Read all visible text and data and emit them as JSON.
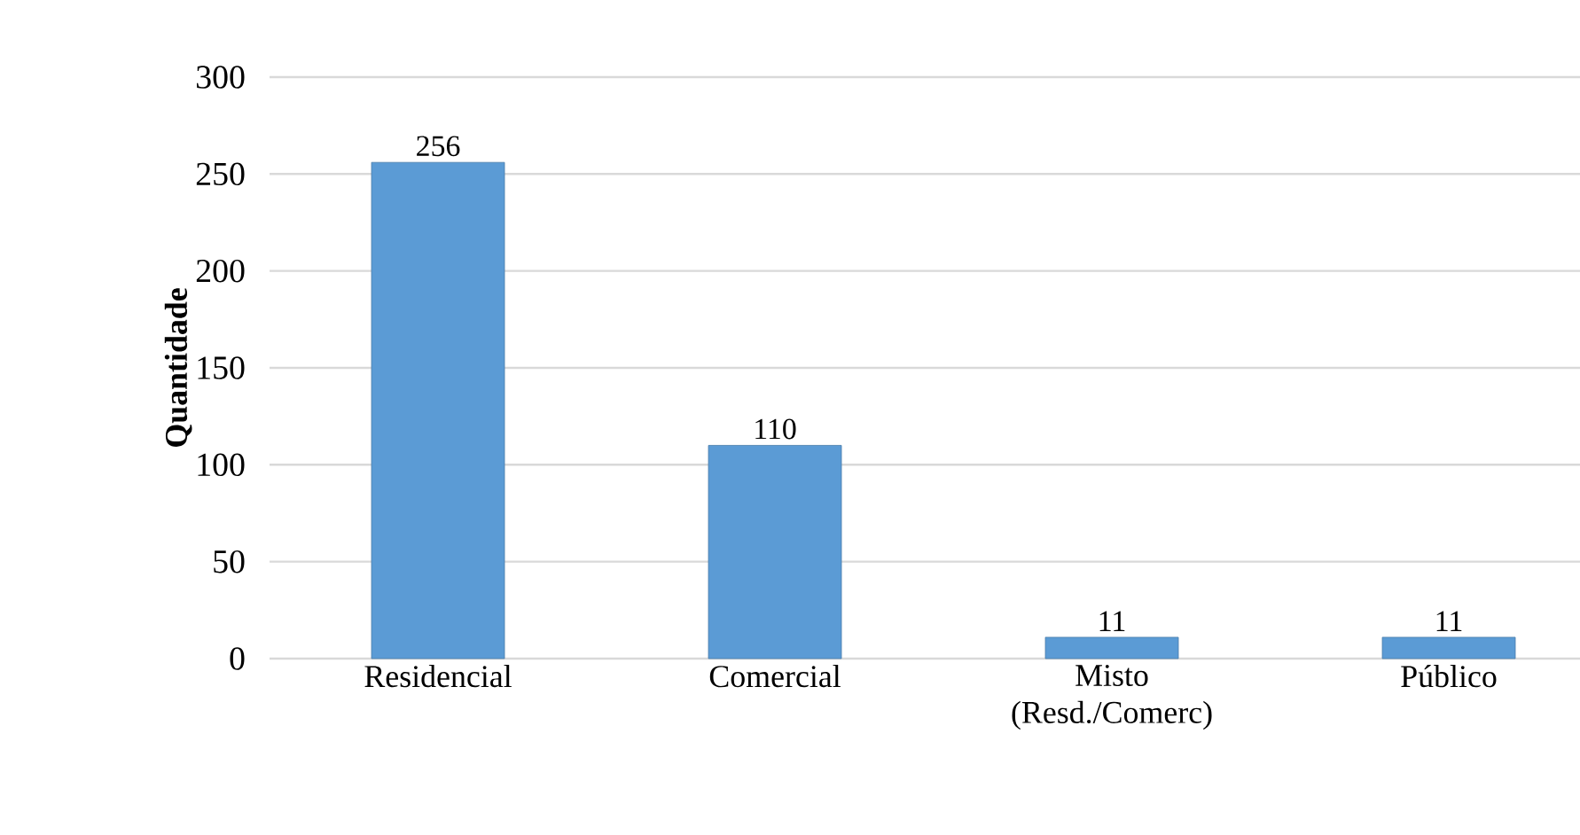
{
  "chart_data": {
    "type": "bar",
    "ylabel": "Quantidade",
    "categories": [
      "Residencial",
      "Comercial",
      "Misto (Resd./Comerc)",
      "Público"
    ],
    "values": [
      256,
      110,
      11,
      11
    ],
    "color": "#5b9bd5",
    "ylim": [
      0,
      300
    ],
    "yticks": [
      0,
      50,
      100,
      150,
      200,
      250,
      300
    ],
    "grid": "y",
    "data_labels": true
  }
}
